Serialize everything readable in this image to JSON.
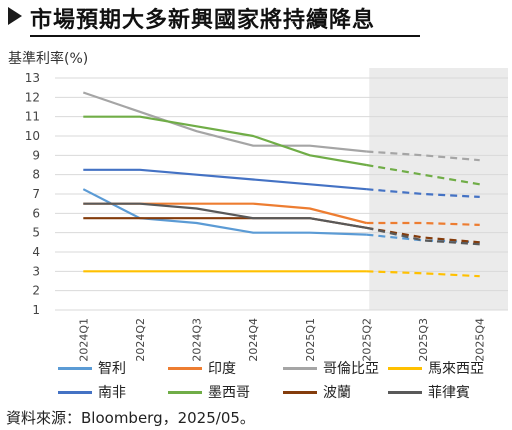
{
  "header": {
    "title": "市場預期大多新興國家將持續降息"
  },
  "chart_data": {
    "type": "line",
    "title": "市場預期大多新興國家將持續降息",
    "ylabel": "基準利率(%)",
    "xlabel": "",
    "categories": [
      "2024Q1",
      "2024Q2",
      "2024Q3",
      "2024Q4",
      "2025Q1",
      "2025Q2",
      "2025Q3",
      "2025Q4"
    ],
    "y_ticks": [
      "1",
      "2",
      "3",
      "4",
      "5",
      "6",
      "7",
      "8",
      "9",
      "10",
      "11",
      "12",
      "13"
    ],
    "ylim": [
      1,
      13
    ],
    "forecast_from": "2025Q2",
    "forecast_region": [
      "2025Q2",
      "2025Q4"
    ],
    "grid": true,
    "legend_position": "bottom",
    "series": [
      {
        "name": "智利",
        "color": "#5b9bd5",
        "values": [
          7.25,
          5.75,
          5.5,
          5.0,
          5.0,
          4.9,
          4.6,
          4.5
        ]
      },
      {
        "name": "印度",
        "color": "#ed7d31",
        "values": [
          6.5,
          6.5,
          6.5,
          6.5,
          6.25,
          5.5,
          5.5,
          5.4
        ]
      },
      {
        "name": "哥倫比亞",
        "color": "#a5a5a5",
        "values": [
          12.25,
          11.25,
          10.25,
          9.5,
          9.5,
          9.2,
          9.0,
          8.75
        ]
      },
      {
        "name": "馬來西亞",
        "color": "#ffc000",
        "values": [
          3.0,
          3.0,
          3.0,
          3.0,
          3.0,
          3.0,
          2.9,
          2.75
        ]
      },
      {
        "name": "南非",
        "color": "#4472c4",
        "values": [
          8.25,
          8.25,
          8.0,
          7.75,
          7.5,
          7.25,
          7.0,
          6.85
        ]
      },
      {
        "name": "墨西哥",
        "color": "#70ad47",
        "values": [
          11.0,
          11.0,
          10.5,
          10.0,
          9.0,
          8.5,
          8.0,
          7.5
        ]
      },
      {
        "name": "波蘭",
        "color": "#843c0c",
        "values": [
          5.75,
          5.75,
          5.75,
          5.75,
          5.75,
          5.25,
          4.75,
          4.5
        ]
      },
      {
        "name": "菲律賓",
        "color": "#595959",
        "values": [
          6.5,
          6.5,
          6.25,
          5.75,
          5.75,
          5.25,
          4.6,
          4.4
        ]
      }
    ]
  },
  "legend": {
    "row1": [
      "智利",
      "印度",
      "哥倫比亞",
      "馬來西亞"
    ],
    "row2": [
      "南非",
      "墨西哥",
      "波蘭",
      "菲律賓"
    ]
  },
  "source": "資料來源：Bloomberg，2025/05。"
}
